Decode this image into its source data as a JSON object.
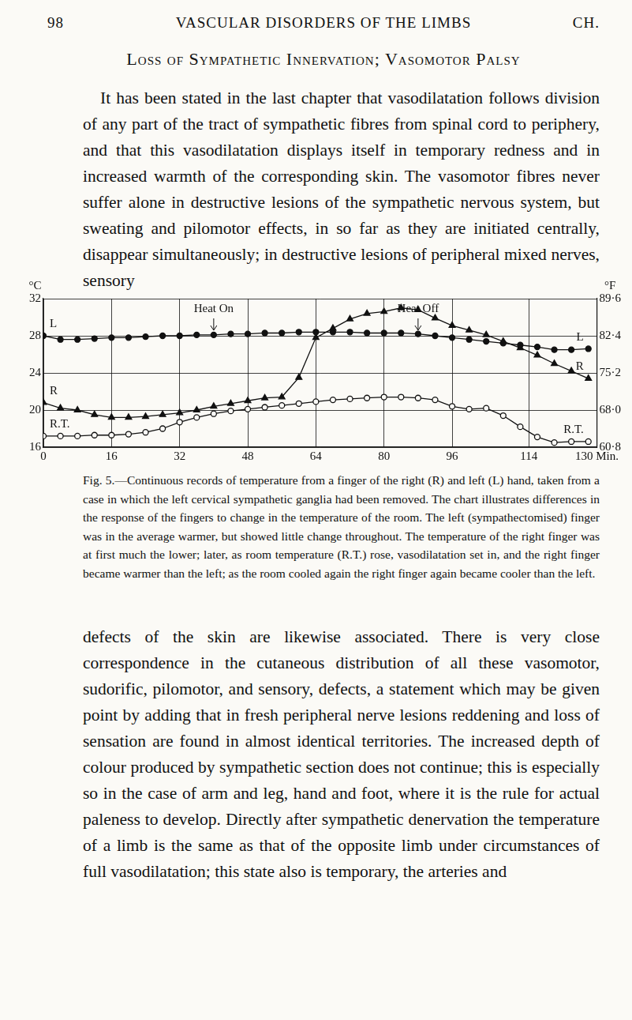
{
  "page": {
    "header": {
      "page": "98",
      "running_title": "VASCULAR DISORDERS OF THE LIMBS",
      "chapter": "CH."
    },
    "section_title": "Loss of Sympathetic Innervation; Vasomotor Palsy",
    "text_before_figure": "It has been stated in the last chapter that vasodilatation follows division of any part of the tract of sympathetic fibres from spinal cord to periphery, and that this vasodilatation displays itself in temporary redness and in increased warmth of the corresponding skin. The vasomotor fibres never suffer alone in destructive lesions of the sympathetic nervous system, but sweating and pilomotor effects, in so far as they are initiated centrally, disappear simultaneously; in destructive lesions of peripheral mixed nerves, sensory",
    "caption": "Fig. 5.—Continuous records of temperature from a finger of the right (R) and left (L) hand, taken from a case in which the left cervical sympathetic ganglia had been removed. The chart illustrates differences in the response of the fingers to change in the temperature of the room. The left (sympathectomised) finger was in the average warmer, but showed little change throughout. The temperature of the right finger was at first much the lower; later, as room temperature (R.T.) rose, vasodilatation set in, and the right finger became warmer than the left; as the room cooled again the right finger again became cooler than the left.",
    "text_after_figure": "defects of the skin are likewise associated. There is very close correspondence in the cutaneous distribution of all these vasomotor, sudorific, pilomotor, and sensory, defects, a statement which may be given point by adding that in fresh peripheral nerve lesions reddening and loss of sensation are found in almost identical territories. The increased depth of colour produced by sympathetic section does not continue; this is especially so in the case of arm and leg, hand and foot, where it is the rule for actual paleness to develop. Directly after sympathetic denervation the temperature of a limb is the same as that of the opposite limb under circumstances of full vasodilatation; this state also is temporary, the arteries and"
  },
  "chart_data": {
    "type": "line",
    "ylabel": "°C",
    "y2label": "°F",
    "x": [
      0,
      4,
      8,
      12,
      16,
      20,
      24,
      28,
      32,
      36,
      40,
      44,
      48,
      52,
      56,
      60,
      64,
      68,
      72,
      76,
      80,
      84,
      88,
      92,
      96,
      100,
      104,
      108,
      112,
      116,
      120,
      124,
      128
    ],
    "series": [
      {
        "name": "L",
        "color": "#111111",
        "marker": "circle",
        "line_style": "solid",
        "values": [
          28.0,
          27.6,
          27.6,
          27.7,
          27.8,
          27.8,
          27.9,
          28.0,
          28.0,
          28.1,
          28.1,
          28.2,
          28.2,
          28.3,
          28.3,
          28.4,
          28.4,
          28.4,
          28.4,
          28.3,
          28.3,
          28.3,
          28.2,
          28.0,
          27.8,
          27.6,
          27.4,
          27.2,
          27.0,
          26.8,
          26.5,
          26.5,
          26.6
        ]
      },
      {
        "name": "R",
        "color": "#111111",
        "marker": "triangle",
        "line_style": "solid",
        "values": [
          20.8,
          20.2,
          20.0,
          19.5,
          19.2,
          19.2,
          19.3,
          19.5,
          19.7,
          20.0,
          20.4,
          20.7,
          21.0,
          21.3,
          21.4,
          23.5,
          27.8,
          28.8,
          29.8,
          30.4,
          30.6,
          31.0,
          30.8,
          29.9,
          29.1,
          28.6,
          28.1,
          27.4,
          26.7,
          25.9,
          25.0,
          24.2,
          23.4
        ]
      },
      {
        "name": "R.T.",
        "color": "#111111",
        "marker": "open_circle",
        "line_style": "solid",
        "values": [
          17.2,
          17.2,
          17.2,
          17.3,
          17.3,
          17.4,
          17.6,
          18.0,
          18.7,
          19.2,
          19.6,
          19.9,
          20.1,
          20.3,
          20.5,
          20.7,
          20.9,
          21.1,
          21.2,
          21.3,
          21.4,
          21.4,
          21.3,
          21.1,
          20.4,
          20.1,
          20.2,
          19.4,
          18.2,
          17.1,
          16.5,
          16.6,
          16.6
        ]
      }
    ],
    "annotations": [
      {
        "text": "Heat On",
        "x": 40
      },
      {
        "text": "Heat Off",
        "x": 88
      }
    ],
    "xlim": [
      0,
      130
    ],
    "xticks": [
      0,
      16,
      32,
      48,
      64,
      80,
      96,
      114,
      {
        "value": 130,
        "label": "130 Min."
      }
    ],
    "ylim": [
      16,
      32
    ],
    "yticks": [
      16,
      20,
      24,
      28,
      32
    ],
    "y2lim": [
      60.8,
      89.6
    ],
    "y2ticks": [
      {
        "value": 60.8,
        "label": "60·8"
      },
      {
        "value": 68.0,
        "label": "68·0"
      },
      {
        "value": 75.2,
        "label": "75·2"
      },
      {
        "value": 82.4,
        "label": "82·4"
      },
      {
        "value": 89.6,
        "label": "89·6"
      }
    ],
    "grid": true
  }
}
